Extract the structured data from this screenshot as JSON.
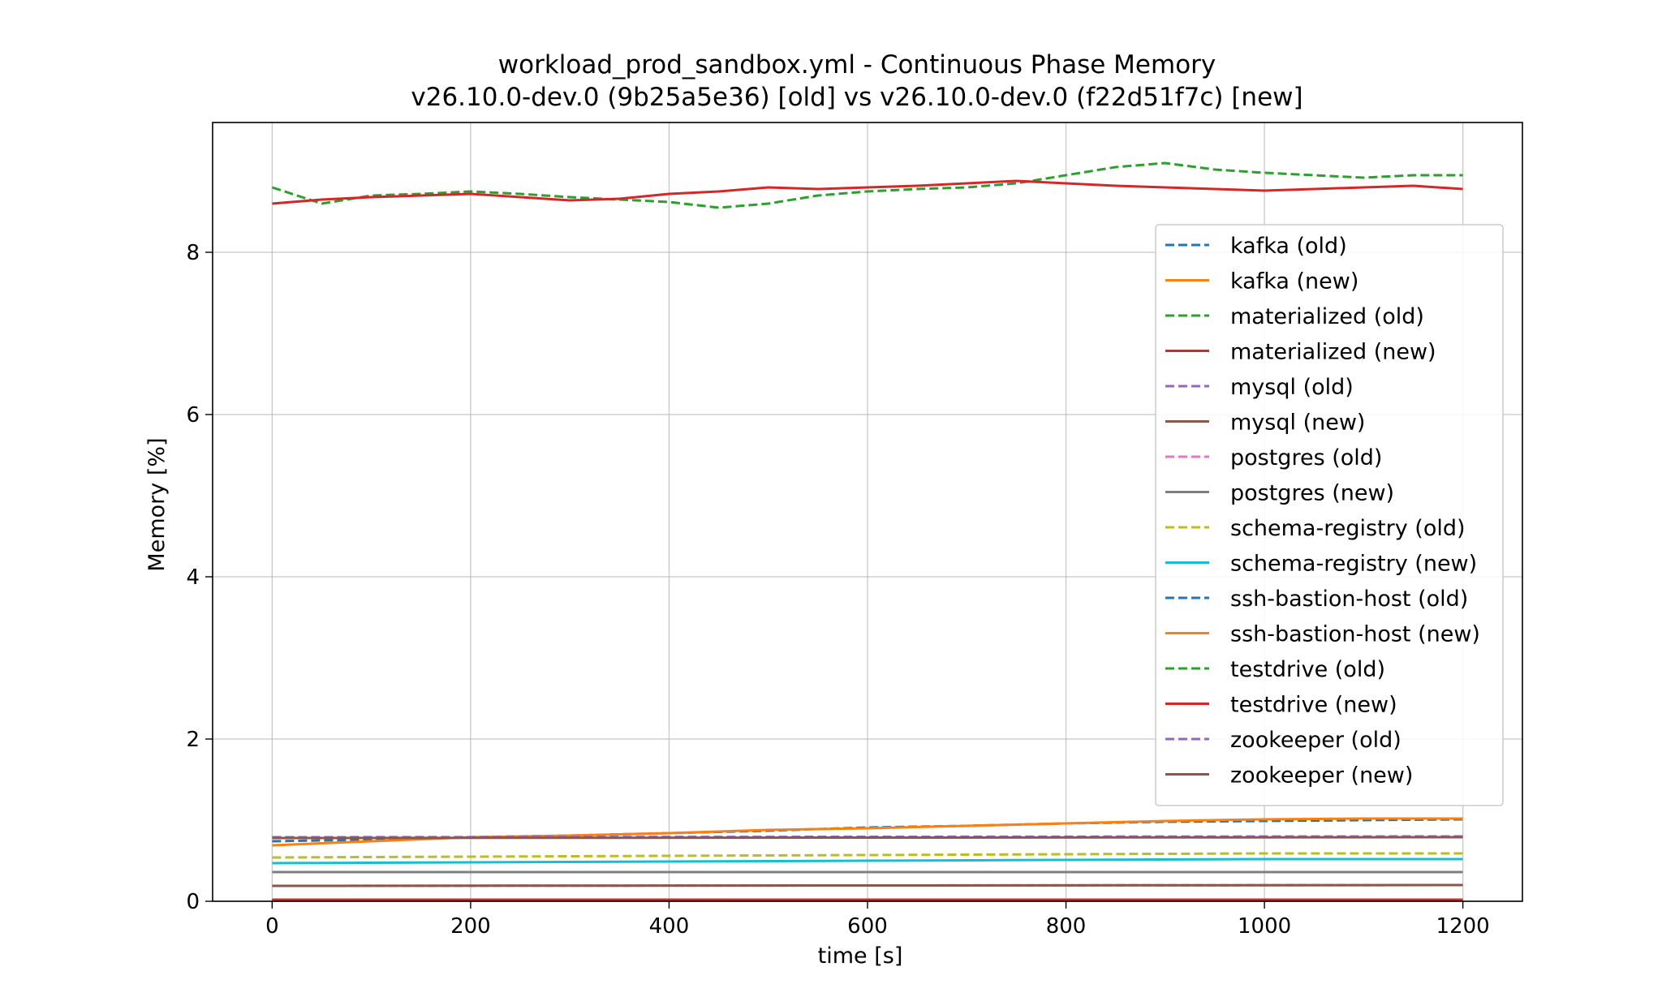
{
  "chart_data": {
    "type": "line",
    "title": "workload_prod_sandbox.yml - Continuous Phase Memory",
    "subtitle": "v26.10.0-dev.0 (9b25a5e36) [old] vs v26.10.0-dev.0 (f22d51f7c) [new]",
    "xlabel": "time [s]",
    "ylabel": "Memory [%]",
    "xlim": [
      -60,
      1260
    ],
    "ylim": [
      0,
      9.6
    ],
    "xticks": [
      0,
      200,
      400,
      600,
      800,
      1000,
      1200
    ],
    "yticks": [
      0,
      2,
      4,
      6,
      8
    ],
    "xtick_labels": [
      "0",
      "200",
      "400",
      "600",
      "800",
      "1000",
      "1200"
    ],
    "ytick_labels": [
      "0",
      "2",
      "4",
      "6",
      "8"
    ],
    "grid": true,
    "legend_position": "upper-right",
    "series": [
      {
        "name": "kafka (old)",
        "color": "#1f77b4",
        "dash": "dashed",
        "x": [
          0,
          100,
          200,
          300,
          400,
          500,
          600,
          700,
          800,
          900,
          1000,
          1100,
          1200
        ],
        "y": [
          0.74,
          0.76,
          0.79,
          0.81,
          0.84,
          0.87,
          0.91,
          0.93,
          0.96,
          0.98,
          0.99,
          1.0,
          1.01
        ]
      },
      {
        "name": "kafka (new)",
        "color": "#ff7f0e",
        "dash": "solid",
        "x": [
          0,
          100,
          200,
          300,
          400,
          500,
          600,
          700,
          800,
          900,
          1000,
          1100,
          1200
        ],
        "y": [
          0.69,
          0.74,
          0.79,
          0.81,
          0.84,
          0.88,
          0.9,
          0.93,
          0.96,
          0.99,
          1.01,
          1.02,
          1.02
        ]
      },
      {
        "name": "materialized (old)",
        "color": "#2ca02c",
        "dash": "dashed",
        "x": [
          0,
          50,
          100,
          150,
          200,
          250,
          300,
          350,
          400,
          450,
          500,
          550,
          600,
          650,
          700,
          750,
          800,
          850,
          900,
          950,
          1000,
          1050,
          1100,
          1150,
          1200
        ],
        "y": [
          8.8,
          8.6,
          8.7,
          8.72,
          8.75,
          8.72,
          8.68,
          8.65,
          8.62,
          8.55,
          8.6,
          8.7,
          8.75,
          8.78,
          8.8,
          8.85,
          8.95,
          9.05,
          9.1,
          9.02,
          8.98,
          8.95,
          8.92,
          8.95,
          8.95
        ]
      },
      {
        "name": "materialized (new)",
        "color": "#d62728",
        "dash": "solid",
        "x": [
          0,
          50,
          100,
          150,
          200,
          250,
          300,
          350,
          400,
          450,
          500,
          550,
          600,
          650,
          700,
          750,
          800,
          850,
          900,
          950,
          1000,
          1050,
          1100,
          1150,
          1200
        ],
        "y": [
          8.6,
          8.65,
          8.68,
          8.7,
          8.72,
          8.68,
          8.64,
          8.66,
          8.72,
          8.75,
          8.8,
          8.78,
          8.8,
          8.82,
          8.85,
          8.88,
          8.85,
          8.82,
          8.8,
          8.78,
          8.76,
          8.78,
          8.8,
          8.82,
          8.78
        ]
      },
      {
        "name": "mysql (old)",
        "color": "#9467bd",
        "dash": "dashed",
        "x": [
          0,
          1200
        ],
        "y": [
          0.19,
          0.2
        ]
      },
      {
        "name": "mysql (new)",
        "color": "#8c564b",
        "dash": "solid",
        "x": [
          0,
          1200
        ],
        "y": [
          0.19,
          0.2
        ]
      },
      {
        "name": "postgres (old)",
        "color": "#e377c2",
        "dash": "dashed",
        "x": [
          0,
          1200
        ],
        "y": [
          0.02,
          0.02
        ]
      },
      {
        "name": "postgres (new)",
        "color": "#7f7f7f",
        "dash": "solid",
        "x": [
          0,
          1200
        ],
        "y": [
          0.36,
          0.36
        ]
      },
      {
        "name": "schema-registry (old)",
        "color": "#bcbd22",
        "dash": "dashed",
        "x": [
          0,
          200,
          400,
          600,
          800,
          1000,
          1200
        ],
        "y": [
          0.54,
          0.55,
          0.56,
          0.57,
          0.58,
          0.59,
          0.59
        ]
      },
      {
        "name": "schema-registry (new)",
        "color": "#17becf",
        "dash": "solid",
        "x": [
          0,
          200,
          400,
          600,
          800,
          1000,
          1200
        ],
        "y": [
          0.47,
          0.48,
          0.49,
          0.5,
          0.51,
          0.52,
          0.52
        ]
      },
      {
        "name": "ssh-bastion-host (old)",
        "color": "#1f77b4",
        "dash": "dashed",
        "x": [
          0,
          1200
        ],
        "y": [
          0.01,
          0.01
        ]
      },
      {
        "name": "ssh-bastion-host (new)",
        "color": "#ff7f0e",
        "dash": "solid",
        "x": [
          0,
          1200
        ],
        "y": [
          0.01,
          0.01
        ]
      },
      {
        "name": "testdrive (old)",
        "color": "#2ca02c",
        "dash": "dashed",
        "x": [
          0,
          1200
        ],
        "y": [
          0.02,
          0.02
        ]
      },
      {
        "name": "testdrive (new)",
        "color": "#d62728",
        "dash": "solid",
        "x": [
          0,
          1200
        ],
        "y": [
          0.02,
          0.02
        ]
      },
      {
        "name": "zookeeper (old)",
        "color": "#9467bd",
        "dash": "dashed",
        "x": [
          0,
          1200
        ],
        "y": [
          0.79,
          0.8
        ]
      },
      {
        "name": "zookeeper (new)",
        "color": "#8c564b",
        "dash": "solid",
        "x": [
          0,
          1200
        ],
        "y": [
          0.78,
          0.79
        ]
      }
    ]
  }
}
